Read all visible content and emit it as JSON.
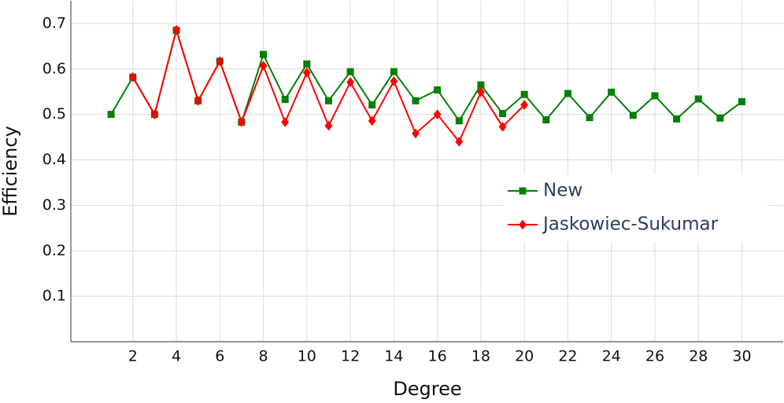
{
  "chart_data": {
    "type": "line",
    "x_label": "Degree",
    "y_label": "Efficiency",
    "x": [
      1,
      2,
      3,
      4,
      5,
      6,
      7,
      8,
      9,
      10,
      11,
      12,
      13,
      14,
      15,
      16,
      17,
      18,
      19,
      20,
      21,
      22,
      23,
      24,
      25,
      26,
      27,
      28,
      29,
      30
    ],
    "series": [
      {
        "name": "New",
        "color": "#008000",
        "marker": "square",
        "values": [
          0.5,
          0.582,
          0.5,
          0.685,
          0.53,
          0.617,
          0.483,
          0.632,
          0.533,
          0.611,
          0.53,
          0.594,
          0.521,
          0.594,
          0.53,
          0.554,
          0.486,
          0.565,
          0.502,
          0.544,
          0.488,
          0.546,
          0.493,
          0.549,
          0.498,
          0.541,
          0.49,
          0.534,
          0.492,
          0.528
        ]
      },
      {
        "name": "Jaskowiec-Sukumar",
        "color": "#ff0000",
        "marker": "diamond",
        "values": [
          null,
          0.582,
          0.5,
          0.686,
          0.53,
          0.617,
          0.483,
          0.607,
          0.483,
          0.592,
          0.475,
          0.571,
          0.486,
          0.573,
          0.458,
          0.5,
          0.44,
          0.549,
          0.473,
          0.521,
          null,
          null,
          null,
          null,
          null,
          null,
          null,
          null,
          null,
          null
        ]
      }
    ],
    "xlim": [
      -0.85,
      31.9
    ],
    "ylim": [
      0,
      0.75
    ],
    "xticks": [
      2,
      4,
      6,
      8,
      10,
      12,
      14,
      16,
      18,
      20,
      22,
      24,
      26,
      28,
      30
    ],
    "yticks": [
      0.1,
      0.2,
      0.3,
      0.4,
      0.5,
      0.6,
      0.7
    ],
    "grid": true,
    "legend": "right"
  }
}
